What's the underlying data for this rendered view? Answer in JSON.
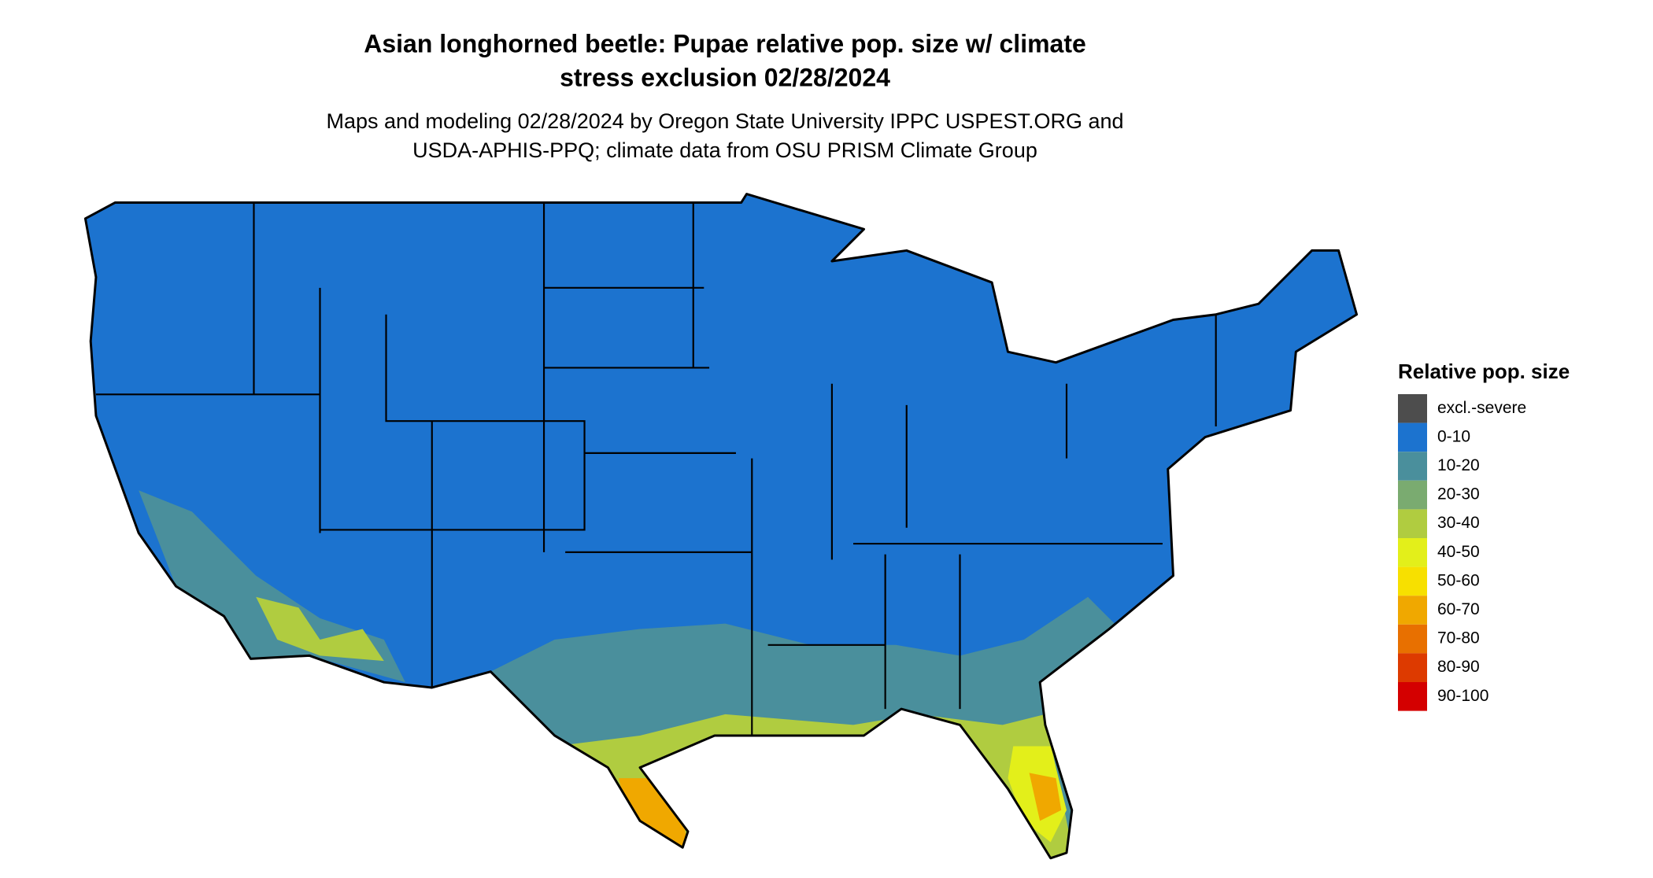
{
  "header": {
    "title_lines": [
      "Asian longhorned beetle: Pupae relative pop. size w/ climate",
      "stress exclusion 02/28/2024"
    ],
    "subtitle_lines": [
      "Maps and modeling 02/28/2024 by Oregon State University IPPC USPEST.ORG and",
      "USDA-APHIS-PPQ; climate data from OSU PRISM Climate Group"
    ]
  },
  "legend": {
    "title": "Relative pop. size",
    "items": [
      {
        "label": "excl.-severe",
        "color": "#4d4d4d"
      },
      {
        "label": "0-10",
        "color": "#1c73cf"
      },
      {
        "label": "10-20",
        "color": "#4a8f9c"
      },
      {
        "label": "20-30",
        "color": "#7aab70"
      },
      {
        "label": "30-40",
        "color": "#b0cc40"
      },
      {
        "label": "40-50",
        "color": "#e3ef1a"
      },
      {
        "label": "50-60",
        "color": "#f7e000"
      },
      {
        "label": "60-70",
        "color": "#f0a800"
      },
      {
        "label": "70-80",
        "color": "#e87000"
      },
      {
        "label": "80-90",
        "color": "#dd3a00"
      },
      {
        "label": "90-100",
        "color": "#d40000"
      }
    ]
  }
}
